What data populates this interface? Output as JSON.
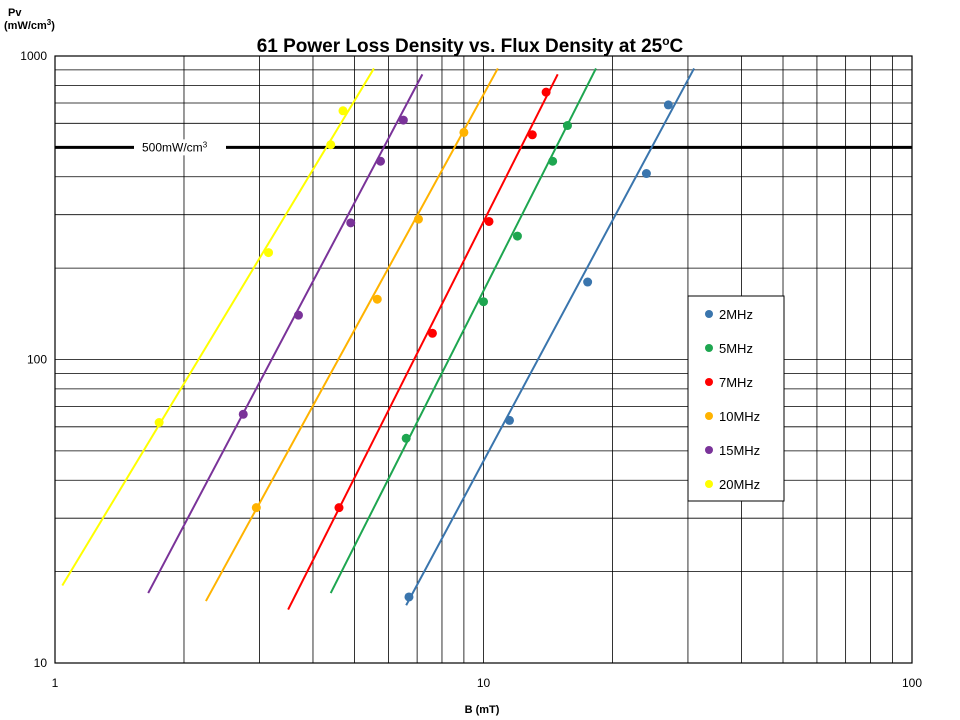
{
  "chart_data": {
    "type": "scatter",
    "title": "61 Power Loss Density vs. Flux Density at 25",
    "title_superscript": "o",
    "title_suffix": "C",
    "xlabel": "B (mT)",
    "ylabel_line1": "Pv",
    "ylabel_line2": "(mW/cm",
    "ylabel_superscript": "3",
    "ylabel_close": ")",
    "x_scale": "log",
    "y_scale": "log",
    "xlim": [
      1,
      100
    ],
    "ylim": [
      10,
      1000
    ],
    "x_tick_labels": [
      "1",
      "10",
      "100"
    ],
    "y_tick_labels": [
      "10",
      "100",
      "1000"
    ],
    "grid": true,
    "reference_line": {
      "y": 500,
      "label": "500mW/cm",
      "label_superscript": "3"
    },
    "legend_position": "right",
    "series": [
      {
        "name": "2MHz",
        "color": "#3a75ad",
        "points": [
          [
            6.7,
            16.5
          ],
          [
            11.5,
            63
          ],
          [
            17.5,
            180
          ],
          [
            24,
            410
          ],
          [
            27,
            690
          ]
        ],
        "trend": [
          [
            6.6,
            15.5
          ],
          [
            31,
            910
          ]
        ]
      },
      {
        "name": "5MHz",
        "color": "#1ea650",
        "points": [
          [
            6.6,
            55
          ],
          [
            10,
            155
          ],
          [
            12,
            255
          ],
          [
            14.5,
            450
          ],
          [
            15.7,
            590
          ]
        ],
        "trend": [
          [
            4.4,
            17
          ],
          [
            18.3,
            910
          ]
        ]
      },
      {
        "name": "7MHz",
        "color": "#ff0000",
        "points": [
          [
            4.6,
            32.5
          ],
          [
            7.6,
            122
          ],
          [
            10.3,
            285
          ],
          [
            13,
            550
          ],
          [
            14,
            760
          ]
        ],
        "trend": [
          [
            3.5,
            15
          ],
          [
            14.9,
            870
          ]
        ]
      },
      {
        "name": "10MHz",
        "color": "#ffb300",
        "points": [
          [
            2.95,
            32.5
          ],
          [
            5.65,
            158
          ],
          [
            7.05,
            290
          ],
          [
            9,
            560
          ]
        ],
        "trend": [
          [
            2.25,
            16
          ],
          [
            10.8,
            910
          ]
        ]
      },
      {
        "name": "15MHz",
        "color": "#7a3399",
        "points": [
          [
            2.75,
            66
          ],
          [
            3.7,
            140
          ],
          [
            4.9,
            282
          ],
          [
            5.75,
            450
          ],
          [
            6.5,
            615
          ]
        ],
        "trend": [
          [
            1.65,
            17
          ],
          [
            7.2,
            870
          ]
        ]
      },
      {
        "name": "20MHz",
        "color": "#ffff00",
        "points": [
          [
            1.75,
            62
          ],
          [
            3.15,
            225
          ],
          [
            4.4,
            510
          ],
          [
            4.7,
            660
          ]
        ],
        "trend": [
          [
            1.04,
            18
          ],
          [
            5.55,
            910
          ]
        ]
      }
    ]
  }
}
